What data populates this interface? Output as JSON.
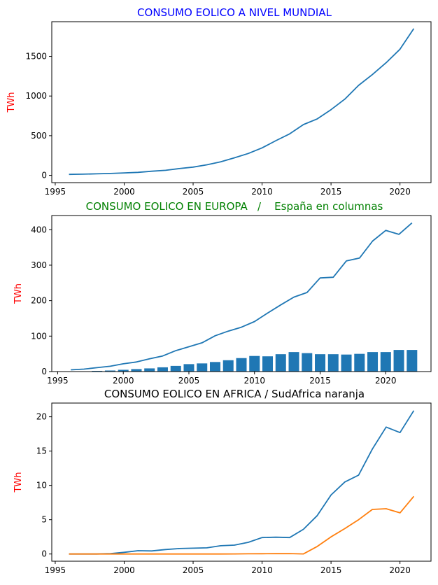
{
  "chart_data": [
    {
      "type": "line",
      "title": "CONSUMO EOLICO A NIVEL MUNDIAL",
      "title_color": "#0000ff",
      "xlabel": "",
      "ylabel": "TWh",
      "ylabel_color": "#ff0000",
      "xlim": [
        1994.75,
        2022.25
      ],
      "ylim": [
        -92,
        1937
      ],
      "xticks": [
        1995,
        2000,
        2005,
        2010,
        2015,
        2020
      ],
      "yticks": [
        0,
        500,
        1000,
        1500
      ],
      "grid": false,
      "series": [
        {
          "color": "#1f77b4",
          "x": [
            1996,
            1997,
            1998,
            1999,
            2000,
            2001,
            2002,
            2003,
            2004,
            2005,
            2006,
            2007,
            2008,
            2009,
            2010,
            2011,
            2012,
            2013,
            2014,
            2015,
            2016,
            2017,
            2018,
            2019,
            2020,
            2021
          ],
          "values": [
            12,
            15,
            19,
            24,
            31,
            38,
            52,
            63,
            85,
            104,
            133,
            170,
            221,
            276,
            346,
            437,
            523,
            640,
            712,
            828,
            960,
            1134,
            1270,
            1420,
            1590,
            1850
          ]
        }
      ]
    },
    {
      "type": "line",
      "title": "CONSUMO EOLICO EN EUROPA   /    España en columnas",
      "title_color": "#008000",
      "xlabel": "",
      "ylabel": "TWh",
      "ylabel_color": "#ff0000",
      "xlim": [
        1994.55,
        2023.45
      ],
      "ylim": [
        0,
        440
      ],
      "xticks": [
        1995,
        2000,
        2005,
        2010,
        2015,
        2020
      ],
      "yticks": [
        0,
        100,
        200,
        300,
        400
      ],
      "grid": false,
      "series": [
        {
          "type": "bar",
          "color": "#1f77b4",
          "x": [
            1996,
            1997,
            1998,
            1999,
            2000,
            2001,
            2002,
            2003,
            2004,
            2005,
            2006,
            2007,
            2008,
            2009,
            2010,
            2011,
            2012,
            2013,
            2014,
            2015,
            2016,
            2017,
            2018,
            2019,
            2020,
            2021,
            2022
          ],
          "values": [
            0.3,
            1,
            2,
            3,
            5,
            7,
            9,
            12,
            16,
            21,
            23,
            27,
            32,
            38,
            44,
            43,
            49,
            55,
            52,
            49,
            49,
            48,
            50,
            55,
            55,
            61,
            61
          ]
        },
        {
          "type": "line",
          "color": "#1f77b4",
          "x": [
            1996,
            1997,
            1998,
            1999,
            2000,
            2001,
            2002,
            2003,
            2004,
            2005,
            2006,
            2007,
            2008,
            2009,
            2010,
            2011,
            2012,
            2013,
            2014,
            2015,
            2016,
            2017,
            2018,
            2019,
            2020,
            2021,
            2022
          ],
          "values": [
            5,
            7,
            11,
            15,
            22,
            27,
            36,
            44,
            59,
            70,
            81,
            101,
            114,
            125,
            141,
            165,
            188,
            210,
            223,
            264,
            266,
            312,
            320,
            368,
            398,
            387,
            419
          ]
        }
      ]
    },
    {
      "type": "line",
      "title": "CONSUMO EOLICO EN AFRICA / SudAfrica naranja",
      "title_color": "#000000",
      "xlabel": "",
      "ylabel": "TWh",
      "ylabel_color": "#ff0000",
      "xlim": [
        1994.75,
        2022.25
      ],
      "ylim": [
        -1.05,
        22
      ],
      "xticks": [
        1995,
        2000,
        2005,
        2010,
        2015,
        2020
      ],
      "yticks": [
        0,
        5,
        10,
        15,
        20
      ],
      "grid": false,
      "series": [
        {
          "color": "#1f77b4",
          "x": [
            1996,
            1997,
            1998,
            1999,
            2000,
            2001,
            2002,
            2003,
            2004,
            2005,
            2006,
            2007,
            2008,
            2009,
            2010,
            2011,
            2012,
            2013,
            2014,
            2015,
            2016,
            2017,
            2018,
            2019,
            2020,
            2021
          ],
          "values": [
            0,
            0,
            0,
            0.05,
            0.25,
            0.48,
            0.45,
            0.65,
            0.8,
            0.85,
            0.9,
            1.2,
            1.3,
            1.7,
            2.4,
            2.45,
            2.4,
            3.6,
            5.6,
            8.6,
            10.5,
            11.5,
            15.3,
            18.5,
            17.7,
            20.9
          ]
        },
        {
          "color": "#ff7f0e",
          "x": [
            1996,
            1997,
            1998,
            1999,
            2000,
            2001,
            2002,
            2003,
            2004,
            2005,
            2006,
            2007,
            2008,
            2009,
            2010,
            2011,
            2012,
            2013,
            2014,
            2015,
            2016,
            2017,
            2018,
            2019,
            2020,
            2021
          ],
          "values": [
            0,
            0,
            0,
            0,
            0,
            0,
            0,
            0,
            0,
            0,
            0,
            0,
            0.01,
            0.03,
            0.04,
            0.05,
            0.06,
            0.01,
            1.1,
            2.5,
            3.7,
            5.0,
            6.5,
            6.6,
            6.0,
            8.4
          ]
        }
      ]
    }
  ]
}
